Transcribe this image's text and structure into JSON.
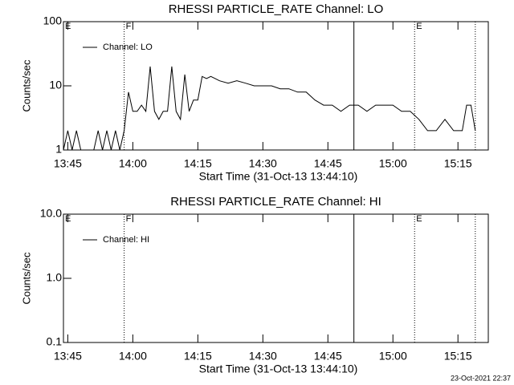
{
  "chart_data": [
    {
      "type": "line",
      "title": "RHESSI PARTICLE_RATE Channel: LO",
      "xlabel": "Start Time (31-Oct-13 13:44:10)",
      "ylabel": "Counts/sec",
      "log_y": true,
      "ylim": [
        1,
        100
      ],
      "yticks": [
        1,
        10,
        100
      ],
      "xlim": [
        "13:44",
        "15:22"
      ],
      "xticks": [
        "13:45",
        "14:00",
        "14:15",
        "14:30",
        "14:45",
        "15:00",
        "15:15"
      ],
      "markers": [
        {
          "x": "13:44",
          "label": "E",
          "style": "none"
        },
        {
          "x": "13:58",
          "label": "F",
          "style": "dotted"
        },
        {
          "x": "14:51",
          "style": "solid"
        },
        {
          "x": "15:05",
          "label": "E",
          "style": "dotted"
        },
        {
          "x": "15:19",
          "style": "dotted"
        }
      ],
      "legend": "top-left",
      "series": [
        {
          "name": "Channel: LO",
          "color": "#000000",
          "x": [
            "13:44",
            "13:45",
            "13:46",
            "13:47",
            "13:48",
            "13:49",
            "13:50",
            "13:51",
            "13:52",
            "13:53",
            "13:54",
            "13:55",
            "13:56",
            "13:57",
            "13:58",
            "13:59",
            "14:00",
            "14:01",
            "14:02",
            "14:03",
            "14:04",
            "14:05",
            "14:06",
            "14:07",
            "14:08",
            "14:09",
            "14:10",
            "14:11",
            "14:12",
            "14:13",
            "14:14",
            "14:15",
            "14:16",
            "14:17",
            "14:18",
            "14:19",
            "14:20",
            "14:22",
            "14:24",
            "14:26",
            "14:28",
            "14:30",
            "14:32",
            "14:34",
            "14:36",
            "14:38",
            "14:40",
            "14:42",
            "14:44",
            "14:46",
            "14:48",
            "14:50",
            "14:52",
            "14:54",
            "14:56",
            "14:58",
            "15:00",
            "15:02",
            "15:04",
            "15:06",
            "15:08",
            "15:10",
            "15:12",
            "15:14",
            "15:16",
            "15:17",
            "15:18",
            "15:19"
          ],
          "values": [
            1,
            2,
            1,
            2,
            1,
            1,
            1,
            1,
            2,
            1,
            2,
            1,
            2,
            1,
            2,
            8,
            4,
            4,
            5,
            4,
            20,
            4,
            3,
            4,
            4,
            20,
            4,
            3,
            15,
            4,
            6,
            6,
            14,
            13,
            14,
            13,
            12,
            11,
            12,
            11,
            10,
            10,
            10,
            9,
            9,
            8,
            8,
            6,
            5,
            5,
            4,
            5,
            5,
            4,
            5,
            5,
            5,
            4,
            4,
            3,
            2,
            2,
            3,
            2,
            2,
            5,
            5,
            2
          ]
        }
      ]
    },
    {
      "type": "line",
      "title": "RHESSI PARTICLE_RATE Channel: HI",
      "xlabel": "Start Time (31-Oct-13 13:44:10)",
      "ylabel": "Counts/sec",
      "log_y": true,
      "ylim": [
        0.1,
        10
      ],
      "yticks": [
        0.1,
        {
          "value": 1,
          "label": "1.0"
        },
        {
          "value": 10,
          "label": "10.0"
        }
      ],
      "xlim": [
        "13:44",
        "15:22"
      ],
      "xticks": [
        "13:45",
        "14:00",
        "14:15",
        "14:30",
        "14:45",
        "15:00",
        "15:15"
      ],
      "markers": [
        {
          "x": "13:44",
          "label": "E",
          "style": "none"
        },
        {
          "x": "13:58",
          "label": "F",
          "style": "dotted"
        },
        {
          "x": "14:51",
          "style": "solid"
        },
        {
          "x": "15:05",
          "label": "E",
          "style": "dotted"
        },
        {
          "x": "15:19",
          "style": "dotted"
        }
      ],
      "legend": "top-left",
      "series": [
        {
          "name": "Channel: HI",
          "color": "#000000",
          "x": [],
          "values": []
        }
      ]
    }
  ],
  "footer": "23-Oct-2021 22:37"
}
